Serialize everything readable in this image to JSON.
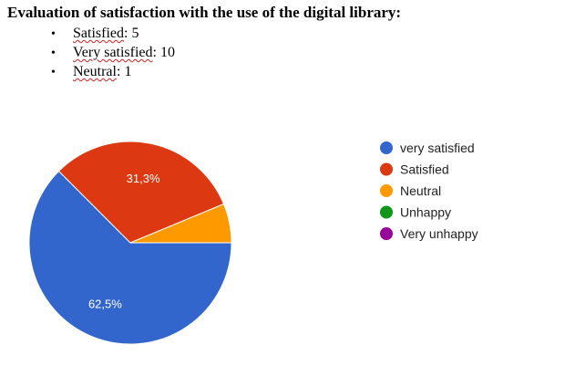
{
  "document": {
    "title": "Evaluation of satisfaction with the use of the digital library:",
    "bullets": [
      {
        "label": "Satisfied",
        "value": "5"
      },
      {
        "label": "Very satisfied",
        "value": "10"
      },
      {
        "label": "Neutral",
        "value": "1"
      }
    ]
  },
  "chart_data": {
    "type": "pie",
    "title": "",
    "legend_position": "right",
    "slices": [
      {
        "name": "very satisfied",
        "value": 10,
        "label": "62,5%",
        "color": "#3366cc"
      },
      {
        "name": "Satisfied",
        "value": 5,
        "label": "31,3%",
        "color": "#dc3912"
      },
      {
        "name": "Neutral",
        "value": 1,
        "label": "",
        "color": "#ff9900"
      },
      {
        "name": "Unhappy",
        "value": 0,
        "label": "",
        "color": "#109618"
      },
      {
        "name": "Very unhappy",
        "value": 0,
        "label": "",
        "color": "#990099"
      }
    ]
  }
}
